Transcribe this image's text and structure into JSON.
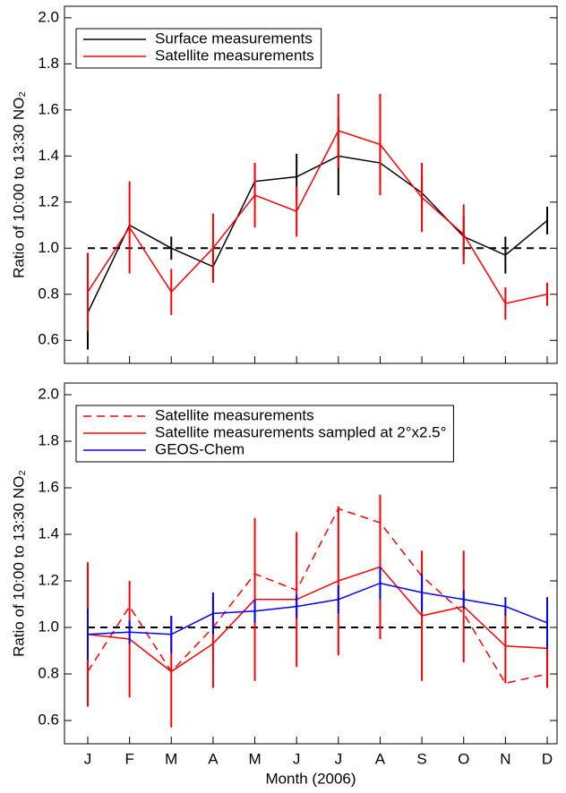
{
  "chart_data": [
    {
      "type": "line",
      "ylabel": "Ratio of 10:00 to 13:30 NO₂",
      "categories": [
        null,
        null,
        null,
        null,
        null,
        null,
        null,
        null,
        null,
        null,
        null,
        null
      ],
      "ylim": [
        0.5,
        2.05
      ],
      "yticks": [
        0.6,
        0.8,
        {
          "value": 1,
          "label": "1.0"
        },
        1.2,
        1.4,
        1.6,
        1.8,
        {
          "value": 2,
          "label": "2.0"
        }
      ],
      "reference_line": 1,
      "series": [
        {
          "name": "Surface measurements",
          "color": "#000000",
          "dashed": false,
          "values": [
            0.72,
            1.1,
            1.0,
            0.92,
            1.29,
            1.31,
            1.4,
            1.37,
            1.24,
            1.05,
            0.97,
            1.12
          ],
          "errors": [
            0.16,
            null,
            0.05,
            0.06,
            0.07,
            0.1,
            0.17,
            0.1,
            0.07,
            0.09,
            0.08,
            0.06
          ]
        },
        {
          "name": "Satellite measurements",
          "color": "#ff0000",
          "dashed": false,
          "values": [
            0.81,
            1.09,
            0.81,
            1.0,
            1.23,
            1.16,
            1.51,
            1.45,
            1.22,
            1.06,
            0.76,
            0.8
          ],
          "errors": [
            0.17,
            0.2,
            0.1,
            0.15,
            0.14,
            0.11,
            0.16,
            0.22,
            0.15,
            0.13,
            0.07,
            0.05
          ]
        }
      ]
    },
    {
      "type": "line",
      "ylabel": "Ratio of 10:00 to 13:30 NO₂",
      "xlabel": "Month (2006)",
      "categories": [
        "J",
        "F",
        "M",
        "A",
        "M",
        "J",
        "J",
        "A",
        "S",
        "O",
        "N",
        "D"
      ],
      "ylim": [
        0.5,
        2.05
      ],
      "yticks": [
        0.6,
        0.8,
        {
          "value": 1,
          "label": "1.0"
        },
        1.2,
        1.4,
        1.6,
        1.8,
        {
          "value": 2,
          "label": "2.0"
        }
      ],
      "reference_line": 1,
      "series": [
        {
          "name": "Satellite measurements",
          "color": "#ff0000",
          "dashed": true,
          "values": [
            0.81,
            1.09,
            0.81,
            1.0,
            1.23,
            1.16,
            1.51,
            1.45,
            1.22,
            1.06,
            0.76,
            0.8
          ]
        },
        {
          "name": "Satellite measurements sampled at 2°x2.5°",
          "color": "#ff0000",
          "dashed": false,
          "values": [
            0.97,
            0.95,
            0.81,
            0.93,
            1.12,
            1.12,
            1.2,
            1.26,
            1.05,
            1.09,
            0.92,
            0.91
          ],
          "errors": [
            0.31,
            0.25,
            0.24,
            0.19,
            0.35,
            0.29,
            0.32,
            0.31,
            0.28,
            0.24,
            0.16,
            0.17
          ]
        },
        {
          "name": "GEOS-Chem",
          "color": "#0000ff",
          "dashed": false,
          "values": [
            0.97,
            0.98,
            0.97,
            1.06,
            1.07,
            1.09,
            1.12,
            1.19,
            1.15,
            1.12,
            1.09,
            1.02
          ],
          "errors": [
            0.11,
            0.05,
            0.08,
            0.09,
            0.05,
            0.05,
            0.06,
            0.07,
            0.08,
            0.04,
            0.04,
            0.11
          ]
        }
      ]
    }
  ]
}
